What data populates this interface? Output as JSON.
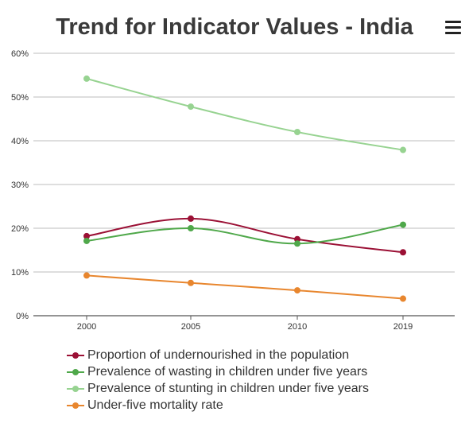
{
  "chart_data": {
    "type": "line",
    "title": "Trend for Indicator Values - India",
    "x": [
      "2000",
      "2005",
      "2010",
      "2019"
    ],
    "yticks": [
      "0%",
      "10%",
      "20%",
      "30%",
      "40%",
      "50%",
      "60%"
    ],
    "ylim": [
      0,
      60
    ],
    "grid": true,
    "legend_position": "bottom",
    "series": [
      {
        "name": "Proportion of undernourished in the population",
        "color": "#9b1035",
        "values": [
          18.2,
          22.2,
          17.5,
          14.5
        ]
      },
      {
        "name": "Prevalence of wasting in children under five years",
        "color": "#4fa84a",
        "values": [
          17.1,
          20.0,
          16.5,
          20.8
        ]
      },
      {
        "name": "Prevalence of stunting in children under five years",
        "color": "#97d391",
        "values": [
          54.2,
          47.8,
          42.0,
          37.9
        ]
      },
      {
        "name": "Under-five mortality rate",
        "color": "#e8862e",
        "values": [
          9.2,
          7.5,
          5.8,
          3.9
        ]
      }
    ]
  },
  "menu": {
    "icon": "hamburger-menu-icon"
  }
}
